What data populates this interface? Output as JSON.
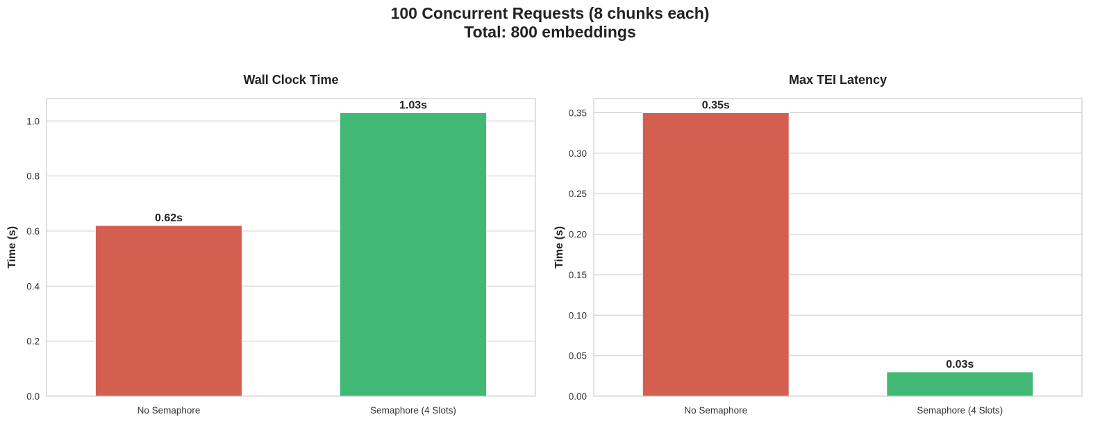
{
  "title_lines": [
    "100 Concurrent Requests (8 chunks each)",
    "Total: 800 embeddings"
  ],
  "chart_data": [
    {
      "type": "bar",
      "title": "Wall Clock Time",
      "categories": [
        "No Semaphore",
        "Semaphore (4 Slots)"
      ],
      "values": [
        0.62,
        1.03
      ],
      "value_labels": [
        "0.62s",
        "1.03s"
      ],
      "colors": [
        "#d35f50",
        "#41b974"
      ],
      "xlabel": "",
      "ylabel": "Time (s)",
      "ylim": [
        0,
        1.0815
      ],
      "yticks": [
        0.0,
        0.2,
        0.4,
        0.6,
        0.8,
        1.0
      ],
      "ytick_labels": [
        "0.0",
        "0.2",
        "0.4",
        "0.6",
        "0.8",
        "1.0"
      ],
      "grid": "y"
    },
    {
      "type": "bar",
      "title": "Max TEI Latency",
      "categories": [
        "No Semaphore",
        "Semaphore (4 Slots)"
      ],
      "values": [
        0.35,
        0.03
      ],
      "value_labels": [
        "0.35s",
        "0.03s"
      ],
      "colors": [
        "#d35f50",
        "#41b974"
      ],
      "xlabel": "",
      "ylabel": "Time (s)",
      "ylim": [
        0,
        0.3675
      ],
      "yticks": [
        0.0,
        0.05,
        0.1,
        0.15,
        0.2,
        0.25,
        0.3,
        0.35
      ],
      "ytick_labels": [
        "0.00",
        "0.05",
        "0.10",
        "0.15",
        "0.20",
        "0.25",
        "0.30",
        "0.35"
      ],
      "grid": "y"
    }
  ]
}
